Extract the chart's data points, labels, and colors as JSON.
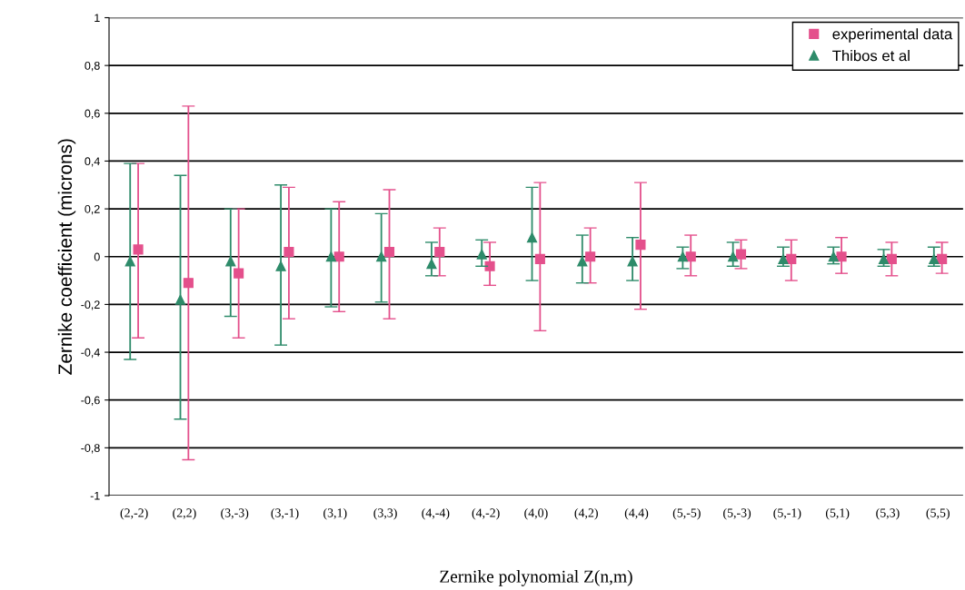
{
  "chart_data": {
    "type": "scatter",
    "xlabel": "Zernike polynomial Z(n,m)",
    "ylabel": "Zernike coefficient (microns)",
    "categories": [
      "(2,-2)",
      "(2,2)",
      "(3,-3)",
      "(3,-1)",
      "(3,1)",
      "(3,3)",
      "(4,-4)",
      "(4,-2)",
      "(4,0)",
      "(4,2)",
      "(4,4)",
      "(5,-5)",
      "(5,-3)",
      "(5,-1)",
      "(5,1)",
      "(5,3)",
      "(5,5)"
    ],
    "series": [
      {
        "name": "experimental data",
        "color": "#e4508c",
        "marker": "square",
        "values": [
          0.03,
          -0.11,
          -0.07,
          0.02,
          0.0,
          0.02,
          0.02,
          -0.04,
          -0.01,
          0.0,
          0.05,
          0.0,
          0.01,
          -0.01,
          0.0,
          -0.01,
          -0.01
        ],
        "errors": [
          [
            -0.34,
            0.39
          ],
          [
            -0.85,
            0.63
          ],
          [
            -0.34,
            0.2
          ],
          [
            -0.26,
            0.29
          ],
          [
            -0.23,
            0.23
          ],
          [
            -0.26,
            0.28
          ],
          [
            -0.08,
            0.12
          ],
          [
            -0.12,
            0.06
          ],
          [
            -0.31,
            0.31
          ],
          [
            -0.11,
            0.12
          ],
          [
            -0.22,
            0.31
          ],
          [
            -0.08,
            0.09
          ],
          [
            -0.05,
            0.07
          ],
          [
            -0.1,
            0.07
          ],
          [
            -0.07,
            0.08
          ],
          [
            -0.08,
            0.06
          ],
          [
            -0.07,
            0.06
          ]
        ]
      },
      {
        "name": "Thibos et al",
        "color": "#2e8b6a",
        "marker": "triangle",
        "values": [
          -0.02,
          -0.18,
          -0.02,
          -0.04,
          0.0,
          0.0,
          -0.03,
          0.01,
          0.08,
          -0.02,
          -0.02,
          0.0,
          0.0,
          -0.01,
          0.0,
          -0.01,
          -0.01
        ],
        "errors": [
          [
            -0.43,
            0.39
          ],
          [
            -0.68,
            0.34
          ],
          [
            -0.25,
            0.2
          ],
          [
            -0.37,
            0.3
          ],
          [
            -0.21,
            0.2
          ],
          [
            -0.19,
            0.18
          ],
          [
            -0.08,
            0.06
          ],
          [
            -0.04,
            0.07
          ],
          [
            -0.1,
            0.29
          ],
          [
            -0.11,
            0.09
          ],
          [
            -0.1,
            0.08
          ],
          [
            -0.05,
            0.04
          ],
          [
            -0.04,
            0.06
          ],
          [
            -0.04,
            0.04
          ],
          [
            -0.03,
            0.04
          ],
          [
            -0.04,
            0.03
          ],
          [
            -0.04,
            0.04
          ]
        ]
      }
    ],
    "ylim": [
      -1,
      1
    ],
    "yticks": [
      {
        "value": -1,
        "label": "-1"
      },
      {
        "value": -0.8,
        "label": "-0,8"
      },
      {
        "value": -0.6,
        "label": "-0,6"
      },
      {
        "value": -0.4,
        "label": "-0,4"
      },
      {
        "value": -0.2,
        "label": "-0,2"
      },
      0,
      {
        "value": 0.2,
        "label": "0,2"
      },
      {
        "value": 0.4,
        "label": "0,4"
      },
      {
        "value": 0.6,
        "label": "0,6"
      },
      {
        "value": 0.8,
        "label": "0,8"
      },
      1
    ],
    "grid": "y",
    "legend": "top right"
  }
}
